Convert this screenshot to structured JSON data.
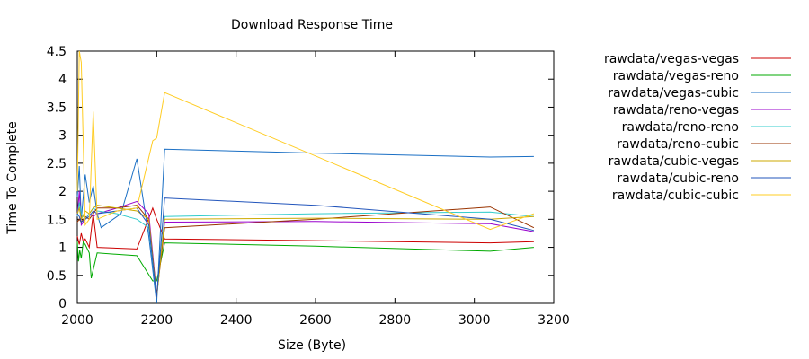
{
  "chart_data": {
    "type": "line",
    "title": "Download Response Time",
    "xlabel": "Size (Byte)",
    "ylabel": "Time To Complete",
    "xlim": [
      2000,
      3200
    ],
    "ylim": [
      0,
      4.5
    ],
    "xticks": [
      2000,
      2200,
      2400,
      2600,
      2800,
      3000,
      3200
    ],
    "yticks": [
      0,
      0.5,
      1,
      1.5,
      2,
      2.5,
      3,
      3.5,
      4,
      4.5
    ],
    "yticks_labels": [
      "0",
      "0.5",
      "1",
      "1.5",
      "2",
      "2.5",
      "3",
      "3.5",
      "4",
      "4.5"
    ],
    "grid": false,
    "legend_position": "right",
    "series": [
      {
        "name": "rawdata/vegas-vegas",
        "color": "#cc0000",
        "x": [
          2000,
          2005,
          2010,
          2015,
          2020,
          2030,
          2040,
          2050,
          2150,
          2190,
          2200,
          2220,
          2600,
          3040,
          3150
        ],
        "y": [
          1.2,
          1.05,
          1.25,
          1.1,
          1.15,
          1.0,
          1.6,
          1.0,
          0.97,
          1.7,
          1.5,
          1.15,
          1.12,
          1.08,
          1.1
        ]
      },
      {
        "name": "rawdata/vegas-reno",
        "color": "#00aa00",
        "x": [
          2000,
          2003,
          2006,
          2010,
          2015,
          2020,
          2030,
          2035,
          2040,
          2050,
          2150,
          2190,
          2200,
          2220,
          2600,
          3040,
          3150
        ],
        "y": [
          1.1,
          0.75,
          0.95,
          0.8,
          1.1,
          1.05,
          0.9,
          0.45,
          0.6,
          0.9,
          0.85,
          0.4,
          0.4,
          1.08,
          1.02,
          0.93,
          1.0
        ]
      },
      {
        "name": "rawdata/vegas-cubic",
        "color": "#1a6fc4",
        "x": [
          2000,
          2005,
          2010,
          2020,
          2030,
          2040,
          2050,
          2060,
          2110,
          2150,
          2180,
          2200,
          2220,
          2600,
          3040,
          3150
        ],
        "y": [
          1.9,
          2.45,
          1.5,
          2.3,
          1.8,
          2.1,
          1.6,
          1.35,
          1.6,
          2.58,
          1.2,
          0.0,
          2.75,
          2.68,
          2.61,
          2.62
        ]
      },
      {
        "name": "rawdata/reno-vegas",
        "color": "#9900cc",
        "x": [
          2000,
          2005,
          2010,
          2020,
          2030,
          2040,
          2050,
          2100,
          2150,
          2180,
          2200,
          2220,
          2600,
          3040,
          3150
        ],
        "y": [
          1.55,
          2.0,
          1.4,
          1.5,
          1.6,
          1.55,
          1.6,
          1.7,
          1.82,
          1.6,
          0.15,
          1.45,
          1.46,
          1.42,
          1.28
        ]
      },
      {
        "name": "rawdata/reno-reno",
        "color": "#33cccc",
        "x": [
          2000,
          2005,
          2010,
          2020,
          2030,
          2040,
          2050,
          2100,
          2150,
          2180,
          2200,
          2220,
          2600,
          3040,
          3150
        ],
        "y": [
          1.55,
          1.8,
          1.6,
          1.5,
          1.6,
          1.7,
          1.65,
          1.6,
          1.5,
          1.35,
          0.1,
          1.55,
          1.6,
          1.63,
          1.55
        ]
      },
      {
        "name": "rawdata/reno-cubic",
        "color": "#993300",
        "x": [
          2000,
          2005,
          2010,
          2020,
          2030,
          2040,
          2050,
          2100,
          2150,
          2180,
          2200,
          2220,
          2600,
          3040,
          3150
        ],
        "y": [
          1.45,
          1.5,
          1.45,
          1.55,
          1.5,
          1.6,
          1.7,
          1.7,
          1.75,
          1.5,
          0.15,
          1.35,
          1.5,
          1.72,
          1.35
        ]
      },
      {
        "name": "rawdata/cubic-vegas",
        "color": "#ccaa00",
        "x": [
          2000,
          2005,
          2010,
          2020,
          2030,
          2040,
          2050,
          2100,
          2150,
          2180,
          2200,
          2220,
          2600,
          3040,
          3150
        ],
        "y": [
          1.6,
          1.7,
          1.5,
          1.65,
          1.6,
          1.7,
          1.75,
          1.7,
          1.65,
          1.5,
          0.1,
          1.5,
          1.52,
          1.5,
          1.55
        ]
      },
      {
        "name": "rawdata/cubic-reno",
        "color": "#2255bb",
        "x": [
          2000,
          2005,
          2010,
          2020,
          2030,
          2040,
          2050,
          2100,
          2150,
          2180,
          2200,
          2220,
          2600,
          3040,
          3150
        ],
        "y": [
          1.6,
          1.55,
          1.45,
          1.5,
          1.55,
          1.65,
          1.6,
          1.65,
          1.7,
          1.4,
          0.1,
          1.88,
          1.75,
          1.5,
          1.3
        ]
      },
      {
        "name": "rawdata/cubic-cubic",
        "color": "#ffcc22",
        "x": [
          2000,
          2005,
          2010,
          2020,
          2030,
          2040,
          2050,
          2100,
          2150,
          2190,
          2200,
          2220,
          3040,
          3150
        ],
        "y": [
          2.0,
          4.5,
          4.3,
          1.4,
          1.5,
          3.42,
          1.5,
          1.65,
          1.7,
          2.9,
          2.95,
          3.76,
          1.32,
          1.6
        ]
      }
    ]
  }
}
